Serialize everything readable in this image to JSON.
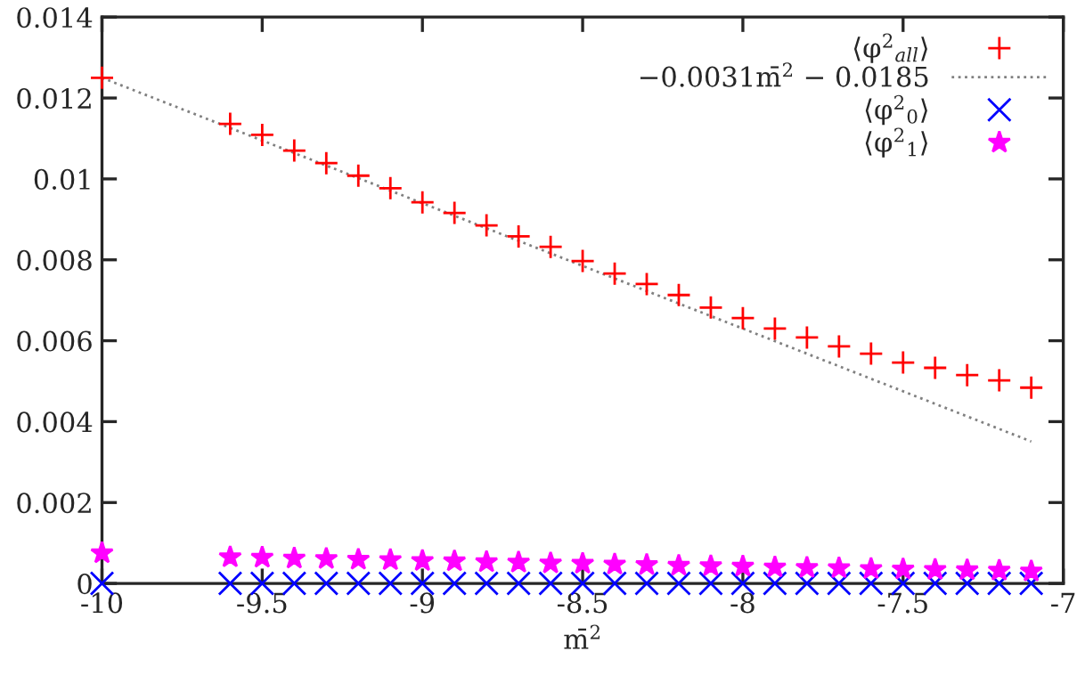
{
  "chart_data": {
    "type": "scatter",
    "xlabel": "m̄$^{2}$",
    "x": [
      -10,
      -9.6,
      -9.5,
      -9.4,
      -9.3,
      -9.2,
      -9.1,
      -9.0,
      -8.9,
      -8.8,
      -8.7,
      -8.6,
      -8.5,
      -8.4,
      -8.3,
      -8.2,
      -8.1,
      -8.0,
      -7.9,
      -7.8,
      -7.7,
      -7.6,
      -7.5,
      -7.4,
      -7.3,
      -7.2,
      -7.1
    ],
    "series": [
      {
        "name": "⟨φ$^{2}$$_{all}$⟩",
        "color": "#ff0000",
        "marker": "cross",
        "values": [
          0.0125,
          0.01136,
          0.01109,
          0.0107,
          0.01039,
          0.01008,
          0.00977,
          0.00942,
          0.00916,
          0.00885,
          0.00858,
          0.00832,
          0.00797,
          0.00766,
          0.0074,
          0.00713,
          0.00682,
          0.00656,
          0.0063,
          0.00608,
          0.00586,
          0.00568,
          0.00546,
          0.00533,
          0.00515,
          0.00502,
          0.00484
        ]
      },
      {
        "name": "−0.0031m̄$^{2}$ − 0.0185",
        "type": "line",
        "color": "#808080",
        "line_style": "dotted",
        "x": [
          -10,
          -7.1
        ],
        "values": [
          0.0125,
          0.00351
        ]
      },
      {
        "name": "⟨φ$^{2}$$_{0}$⟩",
        "color": "#0000ff",
        "marker": "x",
        "values": [
          0,
          0,
          0,
          0,
          0,
          0,
          0,
          0,
          0,
          0,
          0,
          0,
          0,
          0,
          0,
          0,
          0,
          0,
          0,
          0,
          0,
          0,
          0,
          0,
          0,
          0,
          0
        ]
      },
      {
        "name": "⟨φ$^{2}$$_{1}$⟩",
        "color": "#ff00ff",
        "marker": "star",
        "values": [
          0.00075,
          0.00065,
          0.00064,
          0.00062,
          0.00061,
          0.00059,
          0.00058,
          0.00056,
          0.00055,
          0.00053,
          0.00052,
          0.0005,
          0.00049,
          0.00047,
          0.00046,
          0.00044,
          0.00043,
          0.00042,
          0.0004,
          0.00039,
          0.00038,
          0.00036,
          0.00035,
          0.00034,
          0.00033,
          0.00032,
          0.0003
        ]
      }
    ],
    "xlim": [
      -10,
      -7
    ],
    "xticks": [
      -10,
      -9.5,
      -9,
      -8.5,
      -8,
      -7.5,
      -7
    ],
    "ylim": [
      0,
      0.014
    ],
    "yticks": [
      0,
      0.002,
      0.004,
      0.006,
      0.008,
      0.01,
      0.012,
      0.014
    ],
    "grid": false,
    "legend": "top right"
  }
}
